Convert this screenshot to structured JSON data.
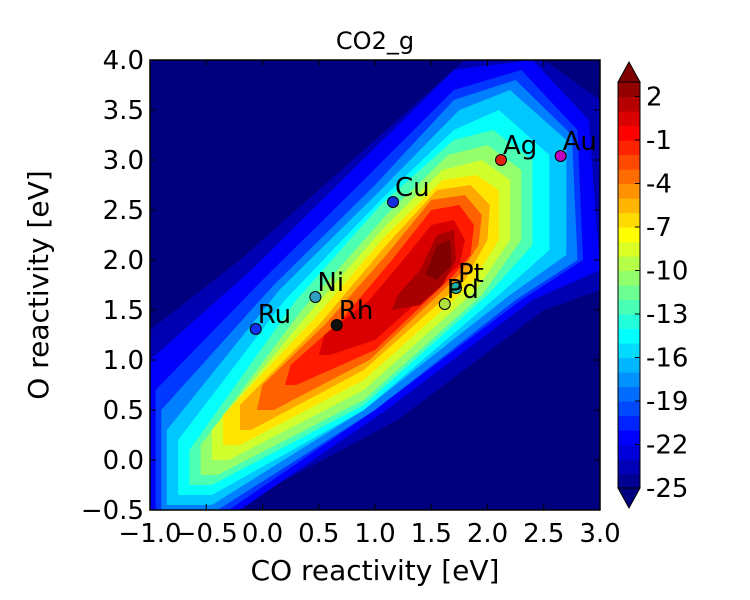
{
  "chart_data": {
    "type": "heatmap",
    "title": "CO2_g",
    "xlabel": "CO reactivity [eV]",
    "ylabel": "O reactivity [eV]",
    "xlim": [
      -1.0,
      3.0
    ],
    "ylim": [
      -0.5,
      4.0
    ],
    "x_ticks": [
      "−1.0",
      "−0.5",
      "0.0",
      "0.5",
      "1.0",
      "1.5",
      "2.0",
      "2.5",
      "3.0"
    ],
    "y_ticks": [
      "−0.5",
      "0.0",
      "0.5",
      "1.0",
      "1.5",
      "2.0",
      "2.5",
      "3.0",
      "3.5",
      "4.0"
    ],
    "colorbar": {
      "min": -25,
      "max": 3,
      "extend": "both",
      "ticks": [
        "-25",
        "-22",
        "-19",
        "-16",
        "-13",
        "-10",
        "-7",
        "-4",
        "-1",
        "2"
      ],
      "tick_values": [
        -25,
        -22,
        -19,
        -16,
        -13,
        -10,
        -7,
        -4,
        -1,
        2
      ]
    },
    "field": {
      "description": "contour bands",
      "peak": {
        "x": 1.6,
        "y": 2.0,
        "value": 2.5
      }
    },
    "points": [
      {
        "label": "Au",
        "x": 2.65,
        "y": 3.04,
        "color": "#c000c0"
      },
      {
        "label": "Ag",
        "x": 2.12,
        "y": 3.0,
        "color": "#e02010"
      },
      {
        "label": "Cu",
        "x": 1.16,
        "y": 2.58,
        "color": "#1030e0"
      },
      {
        "label": "Pt",
        "x": 1.72,
        "y": 1.72,
        "color": "#20b0a0"
      },
      {
        "label": "Pd",
        "x": 1.62,
        "y": 1.56,
        "color": "#b0e040"
      },
      {
        "label": "Ni",
        "x": 0.47,
        "y": 1.63,
        "color": "#30a0c0"
      },
      {
        "label": "Rh",
        "x": 0.66,
        "y": 1.35,
        "color": "#101010"
      },
      {
        "label": "Ru",
        "x": -0.06,
        "y": 1.31,
        "color": "#1030f0"
      }
    ]
  }
}
